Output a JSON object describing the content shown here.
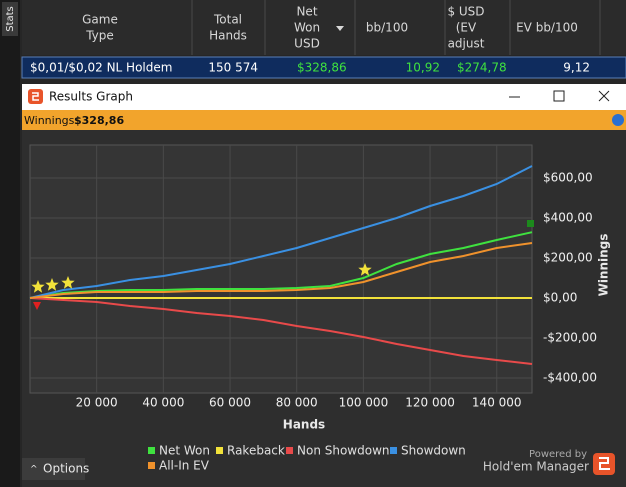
{
  "sidebar": {
    "tab": "Stats"
  },
  "table": {
    "columns": [
      [
        "Game",
        "Type"
      ],
      [
        "Total",
        "Hands"
      ],
      [
        "Net",
        "Won",
        "USD"
      ],
      [
        "bb/100"
      ],
      [
        "$ USD",
        "(EV",
        "adjust"
      ],
      [
        "EV bb/100"
      ]
    ],
    "rows": [
      [
        "$0,01/$0,02 NL Holdem",
        "150 574",
        "$328,86",
        "10,92",
        "$274,78",
        "9,12"
      ]
    ]
  },
  "window": {
    "title": "Results Graph",
    "winnings_label": "Winnings:",
    "winnings_value": "$328,86",
    "options": "Options",
    "powered_by": "Powered by",
    "brand": "Hold'em Manager"
  },
  "chart_data": {
    "type": "line",
    "x_label": "Hands",
    "y_label": "Winnings",
    "x": [
      0,
      10000,
      20000,
      30000,
      40000,
      50000,
      60000,
      70000,
      80000,
      90000,
      100000,
      110000,
      120000,
      130000,
      140000,
      150574
    ],
    "series": [
      {
        "name": "Net Won",
        "color": "#3fe23f",
        "values": [
          0,
          25,
          35,
          40,
          40,
          45,
          45,
          45,
          50,
          60,
          100,
          170,
          220,
          250,
          290,
          329
        ]
      },
      {
        "name": "Rakeback",
        "color": "#f2e23a",
        "values": [
          0,
          0,
          0,
          0,
          0,
          0,
          0,
          0,
          0,
          0,
          0,
          0,
          0,
          0,
          0,
          0
        ]
      },
      {
        "name": "Non Showdown",
        "color": "#e84a4a",
        "values": [
          0,
          -10,
          -20,
          -40,
          -55,
          -75,
          -90,
          -110,
          -140,
          -165,
          -195,
          -230,
          -260,
          -290,
          -310,
          -330
        ]
      },
      {
        "name": "Showdown",
        "color": "#3a90e2",
        "values": [
          0,
          40,
          60,
          90,
          110,
          140,
          170,
          210,
          250,
          300,
          350,
          400,
          460,
          510,
          570,
          660
        ]
      },
      {
        "name": "All-In EV",
        "color": "#f0922c",
        "values": [
          0,
          20,
          30,
          30,
          30,
          35,
          35,
          35,
          40,
          50,
          80,
          130,
          180,
          210,
          250,
          275
        ]
      }
    ],
    "xlim": [
      0,
      150574
    ],
    "ylim": [
      -475,
      765
    ],
    "xticks": [
      {
        "value": 20000,
        "label": "20 000"
      },
      {
        "value": 40000,
        "label": "40 000"
      },
      {
        "value": 60000,
        "label": "60 000"
      },
      {
        "value": 80000,
        "label": "80 000"
      },
      {
        "value": 100000,
        "label": "100 000"
      },
      {
        "value": 120000,
        "label": "120 000"
      },
      {
        "value": 140000,
        "label": "140 000"
      }
    ],
    "yticks": [
      {
        "value": 600,
        "label": "$600,00"
      },
      {
        "value": 400,
        "label": "$400,00"
      },
      {
        "value": 200,
        "label": "$200,00"
      },
      {
        "value": 0,
        "label": "$0,00"
      },
      {
        "value": -200,
        "label": "-$200,00"
      },
      {
        "value": -400,
        "label": "-$400,00"
      }
    ],
    "grid": true
  }
}
